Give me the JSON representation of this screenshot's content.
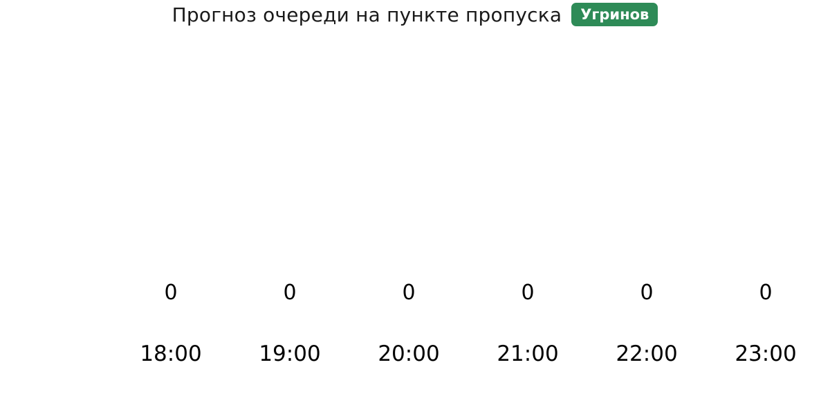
{
  "header": {
    "title": "Прогноз очереди на пункте пропуска",
    "badge": {
      "label": "Угринов",
      "background": "#2e8b57",
      "text_color": "#ffffff"
    }
  },
  "chart_data": {
    "type": "bar",
    "title": "Прогноз очереди на пункте пропуска",
    "badge": "Угринов",
    "categories": [
      "18:00",
      "19:00",
      "20:00",
      "21:00",
      "22:00",
      "23:00"
    ],
    "values": [
      0,
      0,
      0,
      0,
      0,
      0
    ],
    "value_labels": [
      "0",
      "0",
      "0",
      "0",
      "0",
      "0"
    ],
    "xlabel": "",
    "ylabel": "",
    "ylim": [
      0,
      1
    ],
    "grid": false,
    "axes_visible": false,
    "legend": "none",
    "value_labels_shown": true,
    "text_color": "#000000"
  }
}
